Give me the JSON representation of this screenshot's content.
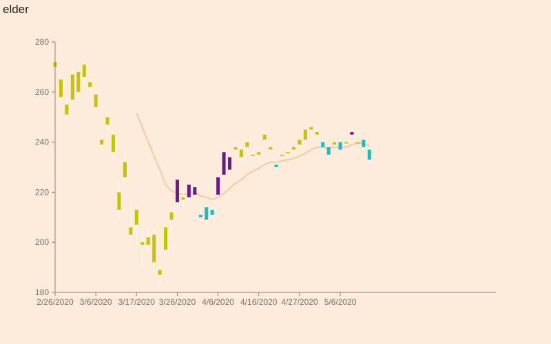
{
  "chart_data": {
    "type": "candlestick",
    "title": "elder",
    "ylim": [
      180,
      280
    ],
    "y_ticks": [
      "180",
      "200",
      "220",
      "240",
      "260",
      "280"
    ],
    "x_tick_labels": [
      "2/26/2020",
      "3/6/2020",
      "3/17/2020",
      "3/26/2020",
      "4/6/2020",
      "4/16/2020",
      "4/27/2020",
      "5/6/2020"
    ],
    "x_tick_index": [
      0,
      7,
      14,
      21,
      28,
      35,
      42,
      49
    ],
    "colors": {
      "rising": "#c5c400",
      "falling": "#6a1a8a",
      "neutral": "#1bbcbc",
      "ma": "#f5c9a4",
      "background": "#fdebdc"
    },
    "candles": [
      {
        "o": 272,
        "c": 270,
        "h": 273,
        "l": 268,
        "k": "rising"
      },
      {
        "o": 265,
        "c": 258,
        "h": 267,
        "l": 256,
        "k": "rising"
      },
      {
        "o": 255,
        "c": 251,
        "h": 258,
        "l": 249,
        "k": "rising"
      },
      {
        "o": 267,
        "c": 257,
        "h": 270,
        "l": 255,
        "k": "rising"
      },
      {
        "o": 268,
        "c": 260,
        "h": 270,
        "l": 258,
        "k": "rising"
      },
      {
        "o": 271,
        "c": 266,
        "h": 272,
        "l": 264,
        "k": "rising"
      },
      {
        "o": 264,
        "c": 262,
        "h": 265,
        "l": 260,
        "k": "rising"
      },
      {
        "o": 259,
        "c": 254,
        "h": 261,
        "l": 252,
        "k": "rising"
      },
      {
        "o": 241,
        "c": 239,
        "h": 246,
        "l": 237,
        "k": "rising"
      },
      {
        "o": 250,
        "c": 247,
        "h": 252,
        "l": 244,
        "k": "rising"
      },
      {
        "o": 243,
        "c": 236,
        "h": 245,
        "l": 234,
        "k": "rising"
      },
      {
        "o": 220,
        "c": 213,
        "h": 225,
        "l": 210,
        "k": "rising"
      },
      {
        "o": 232,
        "c": 226,
        "h": 236,
        "l": 224,
        "k": "rising"
      },
      {
        "o": 206,
        "c": 203,
        "h": 219,
        "l": 201,
        "k": "rising"
      },
      {
        "o": 213,
        "c": 207,
        "h": 215,
        "l": 198,
        "k": "rising"
      },
      {
        "o": 200,
        "c": 199,
        "h": 205,
        "l": 190,
        "k": "rising"
      },
      {
        "o": 202,
        "c": 199,
        "h": 205,
        "l": 196,
        "k": "rising"
      },
      {
        "o": 203,
        "c": 192,
        "h": 205,
        "l": 188,
        "k": "rising"
      },
      {
        "o": 189,
        "c": 187,
        "h": 191,
        "l": 183,
        "k": "rising"
      },
      {
        "o": 206,
        "c": 197,
        "h": 207,
        "l": 195,
        "k": "rising"
      },
      {
        "o": 212,
        "c": 209,
        "h": 214,
        "l": 205,
        "k": "rising"
      },
      {
        "o": 216,
        "c": 225,
        "h": 226,
        "l": 213,
        "k": "falling"
      },
      {
        "o": 218,
        "c": 217,
        "h": 221,
        "l": 214,
        "k": "rising"
      },
      {
        "o": 218,
        "c": 223,
        "h": 224,
        "l": 216,
        "k": "falling"
      },
      {
        "o": 219,
        "c": 222,
        "h": 224,
        "l": 218,
        "k": "falling"
      },
      {
        "o": 211,
        "c": 210,
        "h": 213,
        "l": 208,
        "k": "neutral"
      },
      {
        "o": 214,
        "c": 209,
        "h": 215,
        "l": 207,
        "k": "neutral"
      },
      {
        "o": 213,
        "c": 211,
        "h": 214,
        "l": 210,
        "k": "neutral"
      },
      {
        "o": 219,
        "c": 226,
        "h": 227,
        "l": 218,
        "k": "falling"
      },
      {
        "o": 227,
        "c": 236,
        "h": 237,
        "l": 226,
        "k": "falling"
      },
      {
        "o": 229,
        "c": 234,
        "h": 235,
        "l": 228,
        "k": "falling"
      },
      {
        "o": 238,
        "c": 237,
        "h": 241,
        "l": 236,
        "k": "rising"
      },
      {
        "o": 237,
        "c": 234,
        "h": 238,
        "l": 231,
        "k": "rising"
      },
      {
        "o": 240,
        "c": 238,
        "h": 241,
        "l": 236,
        "k": "rising"
      },
      {
        "o": 235,
        "c": 235,
        "h": 237,
        "l": 233,
        "k": "rising"
      },
      {
        "o": 236,
        "c": 235,
        "h": 237,
        "l": 232,
        "k": "rising"
      },
      {
        "o": 243,
        "c": 241,
        "h": 244,
        "l": 240,
        "k": "rising"
      },
      {
        "o": 238,
        "c": 237,
        "h": 240,
        "l": 236,
        "k": "rising"
      },
      {
        "o": 231,
        "c": 230,
        "h": 233,
        "l": 229,
        "k": "neutral"
      },
      {
        "o": 235,
        "c": 235,
        "h": 236,
        "l": 234,
        "k": "rising"
      },
      {
        "o": 236,
        "c": 236,
        "h": 238,
        "l": 235,
        "k": "rising"
      },
      {
        "o": 238,
        "c": 237,
        "h": 239,
        "l": 236,
        "k": "rising"
      },
      {
        "o": 241,
        "c": 239,
        "h": 242,
        "l": 238,
        "k": "rising"
      },
      {
        "o": 245,
        "c": 241,
        "h": 246,
        "l": 240,
        "k": "rising"
      },
      {
        "o": 246,
        "c": 245,
        "h": 247,
        "l": 244,
        "k": "rising"
      },
      {
        "o": 244,
        "c": 243,
        "h": 245,
        "l": 242,
        "k": "rising"
      },
      {
        "o": 240,
        "c": 238,
        "h": 241,
        "l": 236,
        "k": "neutral"
      },
      {
        "o": 238,
        "c": 235,
        "h": 239,
        "l": 234,
        "k": "neutral"
      },
      {
        "o": 240,
        "c": 239,
        "h": 241,
        "l": 238,
        "k": "rising"
      },
      {
        "o": 240,
        "c": 237,
        "h": 241,
        "l": 236,
        "k": "neutral"
      },
      {
        "o": 240,
        "c": 240,
        "h": 241,
        "l": 239,
        "k": "rising"
      },
      {
        "o": 243,
        "c": 244,
        "h": 244,
        "l": 242,
        "k": "falling"
      },
      {
        "o": 240,
        "c": 240,
        "h": 241,
        "l": 239,
        "k": "rising"
      },
      {
        "o": 241,
        "c": 238,
        "h": 242,
        "l": 237,
        "k": "neutral"
      },
      {
        "o": 237,
        "c": 233,
        "h": 238,
        "l": 231,
        "k": "neutral"
      }
    ],
    "moving_average": [
      {
        "i": 14,
        "v": 251.5
      },
      {
        "i": 15,
        "v": 246
      },
      {
        "i": 16,
        "v": 240
      },
      {
        "i": 17,
        "v": 234.5
      },
      {
        "i": 18,
        "v": 229
      },
      {
        "i": 19,
        "v": 223
      },
      {
        "i": 20,
        "v": 220.5
      },
      {
        "i": 21,
        "v": 219.5
      },
      {
        "i": 22,
        "v": 219
      },
      {
        "i": 23,
        "v": 219.5
      },
      {
        "i": 24,
        "v": 220
      },
      {
        "i": 25,
        "v": 218.5
      },
      {
        "i": 26,
        "v": 218
      },
      {
        "i": 27,
        "v": 217
      },
      {
        "i": 28,
        "v": 218
      },
      {
        "i": 29,
        "v": 219.5
      },
      {
        "i": 30,
        "v": 221.5
      },
      {
        "i": 31,
        "v": 223.5
      },
      {
        "i": 32,
        "v": 225
      },
      {
        "i": 33,
        "v": 227
      },
      {
        "i": 34,
        "v": 228.5
      },
      {
        "i": 35,
        "v": 229.5
      },
      {
        "i": 36,
        "v": 231
      },
      {
        "i": 37,
        "v": 232
      },
      {
        "i": 38,
        "v": 232
      },
      {
        "i": 39,
        "v": 232.5
      },
      {
        "i": 40,
        "v": 233
      },
      {
        "i": 41,
        "v": 233.5
      },
      {
        "i": 42,
        "v": 234.5
      },
      {
        "i": 43,
        "v": 235.5
      },
      {
        "i": 44,
        "v": 237
      },
      {
        "i": 45,
        "v": 238
      },
      {
        "i": 46,
        "v": 238
      },
      {
        "i": 47,
        "v": 237.5
      },
      {
        "i": 48,
        "v": 238
      },
      {
        "i": 49,
        "v": 238
      },
      {
        "i": 50,
        "v": 238
      },
      {
        "i": 51,
        "v": 239
      },
      {
        "i": 52,
        "v": 239.5
      },
      {
        "i": 53,
        "v": 239.5
      },
      {
        "i": 54,
        "v": 238.5
      }
    ]
  }
}
